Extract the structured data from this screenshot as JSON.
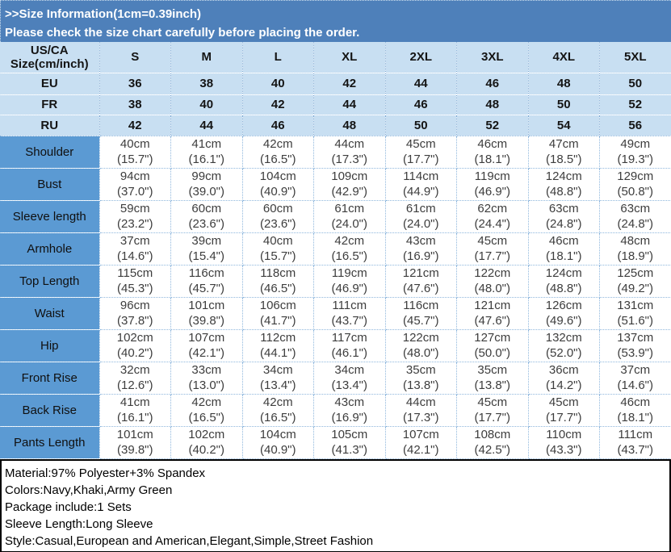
{
  "banner": {
    "title": ">>Size Information(1cm=0.39inch)",
    "subtitle": "Please check the size chart carefully before placing the order."
  },
  "size_chart": {
    "corner_header_line1": "US/CA",
    "corner_header_line2": "Size(cm/inch)",
    "size_columns": [
      "S",
      "M",
      "L",
      "XL",
      "2XL",
      "3XL",
      "4XL",
      "5XL"
    ],
    "region_rows": [
      {
        "label": "EU",
        "values": [
          "36",
          "38",
          "40",
          "42",
          "44",
          "46",
          "48",
          "50"
        ]
      },
      {
        "label": "FR",
        "values": [
          "38",
          "40",
          "42",
          "44",
          "46",
          "48",
          "50",
          "52"
        ]
      },
      {
        "label": "RU",
        "values": [
          "42",
          "44",
          "46",
          "48",
          "50",
          "52",
          "54",
          "56"
        ]
      }
    ],
    "measurement_rows": [
      {
        "label": "Shoulder",
        "cells": [
          [
            "40cm",
            "(15.7\")"
          ],
          [
            "41cm",
            "(16.1\")"
          ],
          [
            "42cm",
            "(16.5\")"
          ],
          [
            "44cm",
            "(17.3\")"
          ],
          [
            "45cm",
            "(17.7\")"
          ],
          [
            "46cm",
            "(18.1\")"
          ],
          [
            "47cm",
            "(18.5\")"
          ],
          [
            "49cm",
            "(19.3\")"
          ]
        ]
      },
      {
        "label": "Bust",
        "cells": [
          [
            "94cm",
            "(37.0\")"
          ],
          [
            "99cm",
            "(39.0\")"
          ],
          [
            "104cm",
            "(40.9\")"
          ],
          [
            "109cm",
            "(42.9\")"
          ],
          [
            "114cm",
            "(44.9\")"
          ],
          [
            "119cm",
            "(46.9\")"
          ],
          [
            "124cm",
            "(48.8\")"
          ],
          [
            "129cm",
            "(50.8\")"
          ]
        ]
      },
      {
        "label": "Sleeve length",
        "cells": [
          [
            "59cm",
            "(23.2\")"
          ],
          [
            "60cm",
            "(23.6\")"
          ],
          [
            "60cm",
            "(23.6\")"
          ],
          [
            "61cm",
            "(24.0\")"
          ],
          [
            "61cm",
            "(24.0\")"
          ],
          [
            "62cm",
            "(24.4\")"
          ],
          [
            "63cm",
            "(24.8\")"
          ],
          [
            "63cm",
            "(24.8\")"
          ]
        ]
      },
      {
        "label": "Armhole",
        "cells": [
          [
            "37cm",
            "(14.6\")"
          ],
          [
            "39cm",
            "(15.4\")"
          ],
          [
            "40cm",
            "(15.7\")"
          ],
          [
            "42cm",
            "(16.5\")"
          ],
          [
            "43cm",
            "(16.9\")"
          ],
          [
            "45cm",
            "(17.7\")"
          ],
          [
            "46cm",
            "(18.1\")"
          ],
          [
            "48cm",
            "(18.9\")"
          ]
        ]
      },
      {
        "label": "Top Length",
        "cells": [
          [
            "115cm",
            "(45.3\")"
          ],
          [
            "116cm",
            "(45.7\")"
          ],
          [
            "118cm",
            "(46.5\")"
          ],
          [
            "119cm",
            "(46.9\")"
          ],
          [
            "121cm",
            "(47.6\")"
          ],
          [
            "122cm",
            "(48.0\")"
          ],
          [
            "124cm",
            "(48.8\")"
          ],
          [
            "125cm",
            "(49.2\")"
          ]
        ]
      },
      {
        "label": "Waist",
        "cells": [
          [
            "96cm",
            "(37.8\")"
          ],
          [
            "101cm",
            "(39.8\")"
          ],
          [
            "106cm",
            "(41.7\")"
          ],
          [
            "111cm",
            "(43.7\")"
          ],
          [
            "116cm",
            "(45.7\")"
          ],
          [
            "121cm",
            "(47.6\")"
          ],
          [
            "126cm",
            "(49.6\")"
          ],
          [
            "131cm",
            "(51.6\")"
          ]
        ]
      },
      {
        "label": "Hip",
        "cells": [
          [
            "102cm",
            "(40.2\")"
          ],
          [
            "107cm",
            "(42.1\")"
          ],
          [
            "112cm",
            "(44.1\")"
          ],
          [
            "117cm",
            "(46.1\")"
          ],
          [
            "122cm",
            "(48.0\")"
          ],
          [
            "127cm",
            "(50.0\")"
          ],
          [
            "132cm",
            "(52.0\")"
          ],
          [
            "137cm",
            "(53.9\")"
          ]
        ]
      },
      {
        "label": "Front Rise",
        "cells": [
          [
            "32cm",
            "(12.6\")"
          ],
          [
            "33cm",
            "(13.0\")"
          ],
          [
            "34cm",
            "(13.4\")"
          ],
          [
            "34cm",
            "(13.4\")"
          ],
          [
            "35cm",
            "(13.8\")"
          ],
          [
            "35cm",
            "(13.8\")"
          ],
          [
            "36cm",
            "(14.2\")"
          ],
          [
            "37cm",
            "(14.6\")"
          ]
        ]
      },
      {
        "label": "Back Rise",
        "cells": [
          [
            "41cm",
            "(16.1\")"
          ],
          [
            "42cm",
            "(16.5\")"
          ],
          [
            "42cm",
            "(16.5\")"
          ],
          [
            "43cm",
            "(16.9\")"
          ],
          [
            "44cm",
            "(17.3\")"
          ],
          [
            "45cm",
            "(17.7\")"
          ],
          [
            "45cm",
            "(17.7\")"
          ],
          [
            "46cm",
            "(18.1\")"
          ]
        ]
      },
      {
        "label": "Pants Length",
        "cells": [
          [
            "101cm",
            "(39.8\")"
          ],
          [
            "102cm",
            "(40.2\")"
          ],
          [
            "104cm",
            "(40.9\")"
          ],
          [
            "105cm",
            "(41.3\")"
          ],
          [
            "107cm",
            "(42.1\")"
          ],
          [
            "108cm",
            "(42.5\")"
          ],
          [
            "110cm",
            "(43.3\")"
          ],
          [
            "111cm",
            "(43.7\")"
          ]
        ]
      }
    ]
  },
  "footer": {
    "lines": [
      "Material:97% Polyester+3% Spandex",
      "Colors:Navy,Khaki,Army Green",
      "Package include:1 Sets",
      "Sleeve Length:Long Sleeve",
      "Style:Casual,European and American,Elegant,Simple,Street Fashion"
    ]
  },
  "colors": {
    "banner_bg": "#4e80ba",
    "banner_text": "#ffffff",
    "header_row_bg": "#c8dff2",
    "label_column_bg": "#5b9ad3",
    "cell_bg": "#ffffff",
    "table_text": "#141414",
    "cell_text": "#3d3d3d",
    "grid_dot_blue": "#8fb7dd",
    "footer_border": "#000000"
  }
}
